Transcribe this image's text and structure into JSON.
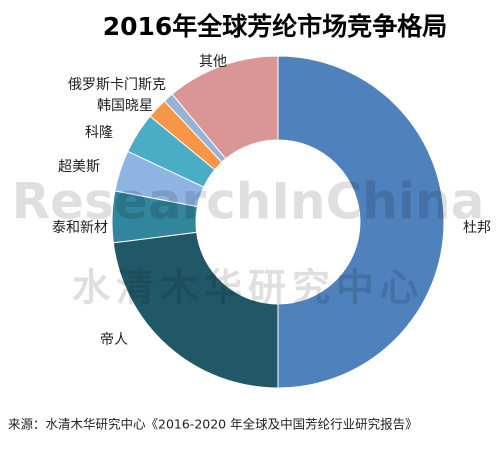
{
  "chart_data": {
    "type": "donut",
    "title": "2016年全球芳纶市场竞争格局",
    "categories": [
      "杜邦",
      "帝人",
      "泰和新材",
      "超美斯",
      "科隆",
      "韩国晓星",
      "俄罗斯卡门斯克",
      "其他"
    ],
    "values": [
      50,
      23,
      5,
      4,
      4,
      2,
      1,
      11
    ],
    "colors": [
      "#4f81bd",
      "#215868",
      "#31859c",
      "#8eb4e3",
      "#4bacc6",
      "#f79646",
      "#95b3d7",
      "#d99694"
    ],
    "watermark": [
      "ResearchInChina",
      "水清木华研究中心"
    ],
    "source": "来源：水清木华研究中心《2016-2020 年全球及中国芳纶行业研究报告》"
  }
}
